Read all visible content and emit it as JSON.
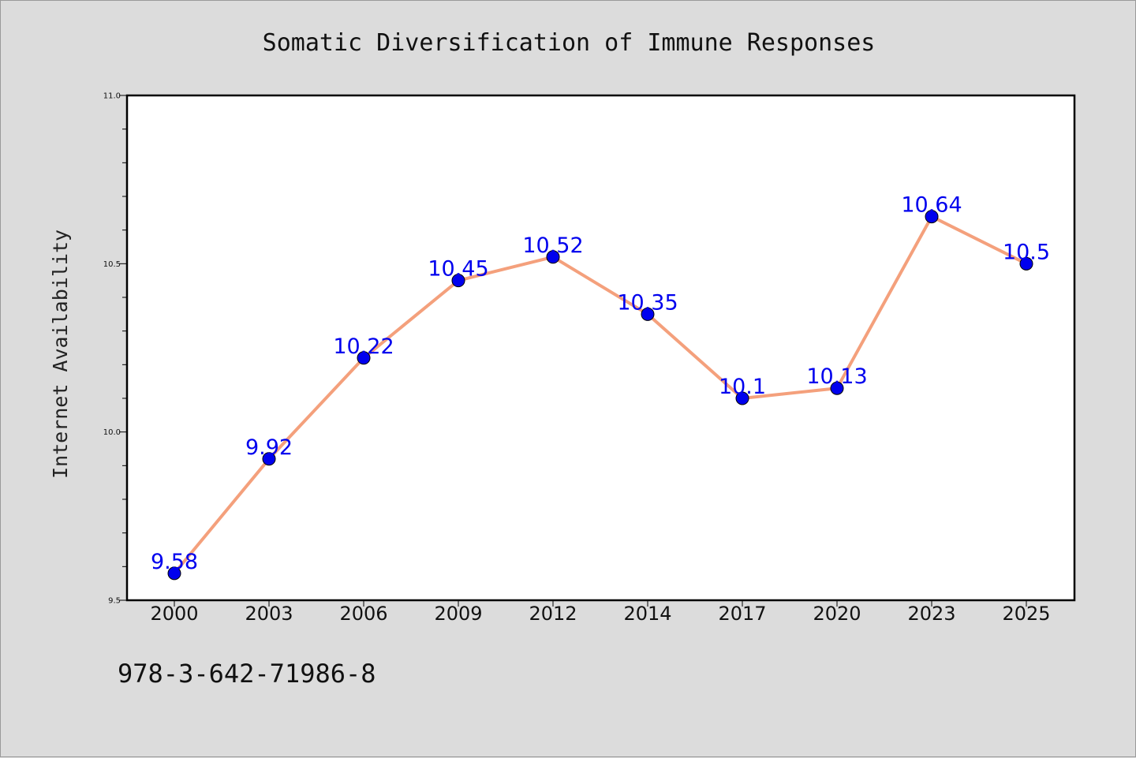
{
  "chart_data": {
    "type": "line",
    "title": "Somatic Diversification of Immune Responses",
    "xlabel": "",
    "ylabel": "Internet Availability",
    "categories": [
      "2000",
      "2003",
      "2006",
      "2009",
      "2012",
      "2014",
      "2017",
      "2020",
      "2023",
      "2025"
    ],
    "series": [
      {
        "values": [
          9.58,
          9.92,
          10.22,
          10.45,
          10.52,
          10.35,
          10.1,
          10.13,
          10.64,
          10.5
        ],
        "labels": [
          "9.58",
          "9.92",
          "10.22",
          "10.45",
          "10.52",
          "10.35",
          "10.1",
          "10.13",
          "10.64",
          "10.5"
        ],
        "line_color": "#f4a07c",
        "marker_color": "#0000ee",
        "label_color": "#0000ee"
      }
    ],
    "ylim": [
      9.5,
      11.0
    ],
    "yticks": [
      "9.5",
      "10.0",
      "10.5",
      "11.0"
    ],
    "grid": false,
    "legend": "none"
  },
  "footer_text": "978-3-642-71986-8",
  "colors": {
    "background": "#dcdcdc",
    "plot_background": "#ffffff",
    "axis": "#000000"
  }
}
